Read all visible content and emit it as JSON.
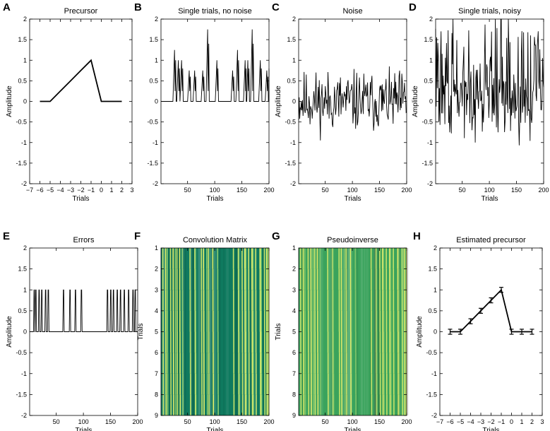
{
  "chart_data": [
    {
      "id": "A",
      "letter": "A",
      "type": "line",
      "title": "Precursor",
      "xlabel": "Trials",
      "ylabel": "Amplitude",
      "xlim": [
        -7,
        3
      ],
      "ylim": [
        -2,
        2
      ],
      "xticks": [
        -7,
        -6,
        -5,
        -4,
        -3,
        -2,
        -1,
        0,
        1,
        2,
        3
      ],
      "yticks": [
        -2,
        -1.5,
        -1,
        -0.5,
        0,
        0.5,
        1,
        1.5,
        2
      ],
      "ylabel_shown": true,
      "series": [
        {
          "name": "precursor",
          "x": [
            -6,
            -5,
            -4,
            -3,
            -2,
            -1,
            0,
            1,
            2
          ],
          "y": [
            0,
            0,
            0.25,
            0.5,
            0.75,
            1,
            0,
            0,
            0
          ]
        }
      ]
    },
    {
      "id": "B",
      "letter": "B",
      "type": "line",
      "title": "Single trials, no noise",
      "xlabel": "Trials",
      "ylabel": "",
      "xlim": [
        1,
        200
      ],
      "ylim": [
        -2,
        2
      ],
      "xticks": [
        50,
        100,
        150,
        200
      ],
      "yticks": [
        -2,
        -1.5,
        -1,
        -0.5,
        0,
        0.5,
        1,
        1.5,
        2
      ],
      "ylabel_shown": false,
      "series": [
        {
          "name": "single trials",
          "generator": "spikes",
          "seed": 3,
          "event_trials": [
            27,
            34,
            40,
            54,
            64,
            79,
            88,
            105,
            134,
            143,
            157,
            162,
            170,
            185,
            197
          ],
          "peak_values": [
            1.25,
            1.0,
            1.0,
            0.75,
            0.75,
            0.75,
            1.75,
            1.0,
            0.75,
            1.25,
            1.0,
            1.0,
            1.75,
            1.0,
            0.75
          ]
        }
      ]
    },
    {
      "id": "C",
      "letter": "C",
      "type": "line",
      "title": "Noise",
      "xlabel": "Trials",
      "ylabel": "Amplitude",
      "xlim": [
        1,
        200
      ],
      "ylim": [
        -2,
        2
      ],
      "xticks": [
        50,
        100,
        150,
        200
      ],
      "yticks": [
        -2,
        -1.5,
        -1,
        -0.5,
        0,
        0.5,
        1,
        1.5,
        2
      ],
      "ylabel_shown": true,
      "series": [
        {
          "name": "noise",
          "generator": "noise",
          "seed": 11,
          "amplitude": 0.62,
          "n": 200
        }
      ]
    },
    {
      "id": "D",
      "letter": "D",
      "type": "line",
      "title": "Single trials, noisy",
      "xlabel": "Trials",
      "ylabel": "Amplitude",
      "xlim": [
        1,
        200
      ],
      "ylim": [
        -2,
        2
      ],
      "xticks": [
        50,
        100,
        150,
        200
      ],
      "yticks": [
        -2,
        -1.5,
        -1,
        -0.5,
        0,
        0.5,
        1,
        1.5,
        2
      ],
      "ylabel_shown": true,
      "series": [
        {
          "name": "noisy trials",
          "generator": "noisy",
          "seed": 29,
          "amplitude": 0.7,
          "n": 200
        }
      ]
    },
    {
      "id": "E",
      "letter": "E",
      "type": "line",
      "title": "Errors",
      "xlabel": "Trials",
      "ylabel": "Amplitude",
      "xlim": [
        1,
        200
      ],
      "ylim": [
        -2,
        2
      ],
      "xticks": [
        50,
        100,
        150,
        200
      ],
      "yticks": [
        -2,
        -1.5,
        -1,
        -0.5,
        0,
        0.5,
        1,
        1.5,
        2
      ],
      "ylabel_shown": true,
      "series": [
        {
          "name": "errors",
          "generator": "binary",
          "event_trials": [
            9,
            12,
            18,
            23,
            30,
            35,
            63,
            75,
            85,
            96,
            144,
            150,
            155,
            162,
            168,
            175,
            183,
            191,
            195
          ]
        }
      ]
    },
    {
      "id": "F",
      "letter": "F",
      "type": "heatmap",
      "title": "Convolution Matrix",
      "xlabel": "Trials",
      "ylabel": "Trials",
      "xlim": [
        1,
        200
      ],
      "ylim": [
        1,
        9
      ],
      "xticks": [
        50,
        100,
        150,
        200
      ],
      "yticks": [
        1,
        2,
        3,
        4,
        5,
        6,
        7,
        8,
        9
      ],
      "ylabel_shown": true,
      "background": "#0f7a5f",
      "stripe_colors": [
        "#c8e36a",
        "#e6f06a",
        "#8fcf72"
      ],
      "stripe_trials": [
        4,
        9,
        12,
        18,
        23,
        27,
        30,
        35,
        40,
        54,
        63,
        64,
        75,
        79,
        85,
        88,
        96,
        105,
        134,
        143,
        144,
        150,
        155,
        157,
        162,
        168,
        170,
        175,
        183,
        185,
        191,
        195,
        197
      ]
    },
    {
      "id": "G",
      "letter": "G",
      "type": "heatmap",
      "title": "Pseudoinverse",
      "xlabel": "Trials",
      "ylabel": "Trials",
      "xlim": [
        1,
        200
      ],
      "ylim": [
        1,
        9
      ],
      "xticks": [
        50,
        100,
        150,
        200
      ],
      "yticks": [
        1,
        2,
        3,
        4,
        5,
        6,
        7,
        8,
        9
      ],
      "ylabel_shown": true,
      "background": "#3aa35c",
      "stripe_colors": [
        "#c8e36a",
        "#dde96a",
        "#7fc46a"
      ],
      "stripe_trials": [
        4,
        9,
        12,
        18,
        23,
        27,
        30,
        35,
        40,
        54,
        63,
        64,
        75,
        79,
        85,
        88,
        96,
        105,
        134,
        143,
        144,
        150,
        155,
        157,
        162,
        168,
        170,
        175,
        183,
        185,
        191,
        195,
        197
      ]
    },
    {
      "id": "H",
      "letter": "H",
      "type": "line",
      "title": "Estimated precursor",
      "xlabel": "Trials",
      "ylabel": "Amplitude",
      "xlim": [
        -7,
        3
      ],
      "ylim": [
        -2,
        2
      ],
      "xticks": [
        -7,
        -6,
        -5,
        -4,
        -3,
        -2,
        -1,
        0,
        1,
        2,
        3
      ],
      "yticks": [
        -2,
        -1.5,
        -1,
        -0.5,
        0,
        0.5,
        1,
        1.5,
        2
      ],
      "ylabel_shown": true,
      "error_bars": true,
      "series": [
        {
          "name": "estimated precursor",
          "x": [
            -6,
            -5,
            -4,
            -3,
            -2,
            -1,
            0,
            1,
            2
          ],
          "y": [
            0,
            0,
            0.25,
            0.5,
            0.75,
            1,
            0,
            0,
            0
          ],
          "err": [
            0.06,
            0.06,
            0.06,
            0.06,
            0.06,
            0.06,
            0.06,
            0.06,
            0.06
          ]
        }
      ]
    }
  ]
}
